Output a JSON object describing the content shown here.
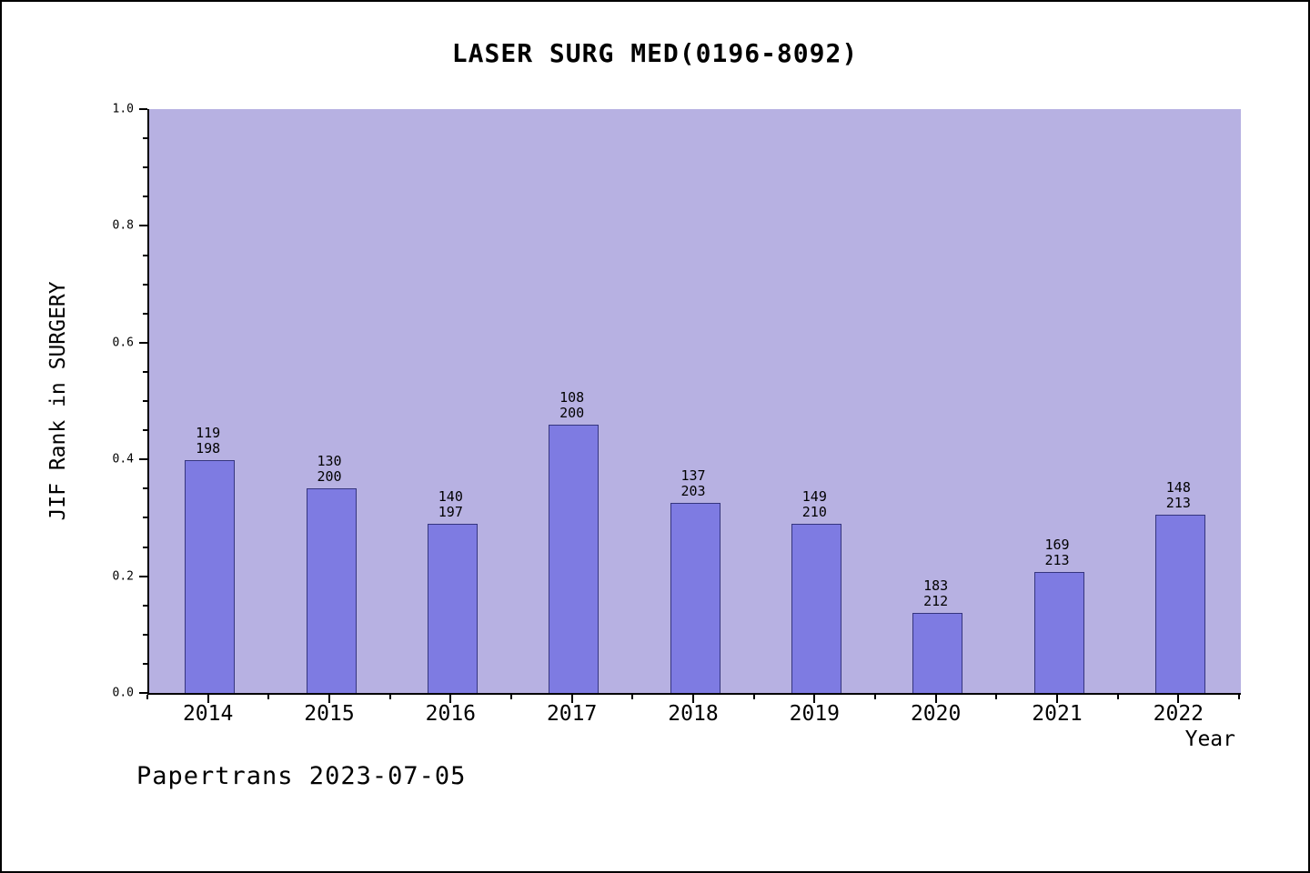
{
  "footer": "Papertrans 2023-07-05",
  "chart_data": {
    "type": "bar",
    "title": "LASER SURG MED(0196-8092)",
    "xlabel": "Year",
    "ylabel": "JIF Rank in SURGERY",
    "ylim": [
      0.0,
      1.0
    ],
    "yticks": [
      0.0,
      0.2,
      0.4,
      0.6,
      0.8,
      1.0
    ],
    "grid": false,
    "plot_bg_color": "#b7b1e2",
    "bar_color": "#7e7be2",
    "categories": [
      "2014",
      "2015",
      "2016",
      "2017",
      "2018",
      "2019",
      "2020",
      "2021",
      "2022"
    ],
    "bars": [
      {
        "year": "2014",
        "rank": 119,
        "total": 198,
        "value": 0.399
      },
      {
        "year": "2015",
        "rank": 130,
        "total": 200,
        "value": 0.35
      },
      {
        "year": "2016",
        "rank": 140,
        "total": 197,
        "value": 0.289
      },
      {
        "year": "2017",
        "rank": 108,
        "total": 200,
        "value": 0.46
      },
      {
        "year": "2018",
        "rank": 137,
        "total": 203,
        "value": 0.325
      },
      {
        "year": "2019",
        "rank": 149,
        "total": 210,
        "value": 0.29
      },
      {
        "year": "2020",
        "rank": 183,
        "total": 212,
        "value": 0.137
      },
      {
        "year": "2021",
        "rank": 169,
        "total": 213,
        "value": 0.207
      },
      {
        "year": "2022",
        "rank": 148,
        "total": 213,
        "value": 0.305
      }
    ]
  }
}
